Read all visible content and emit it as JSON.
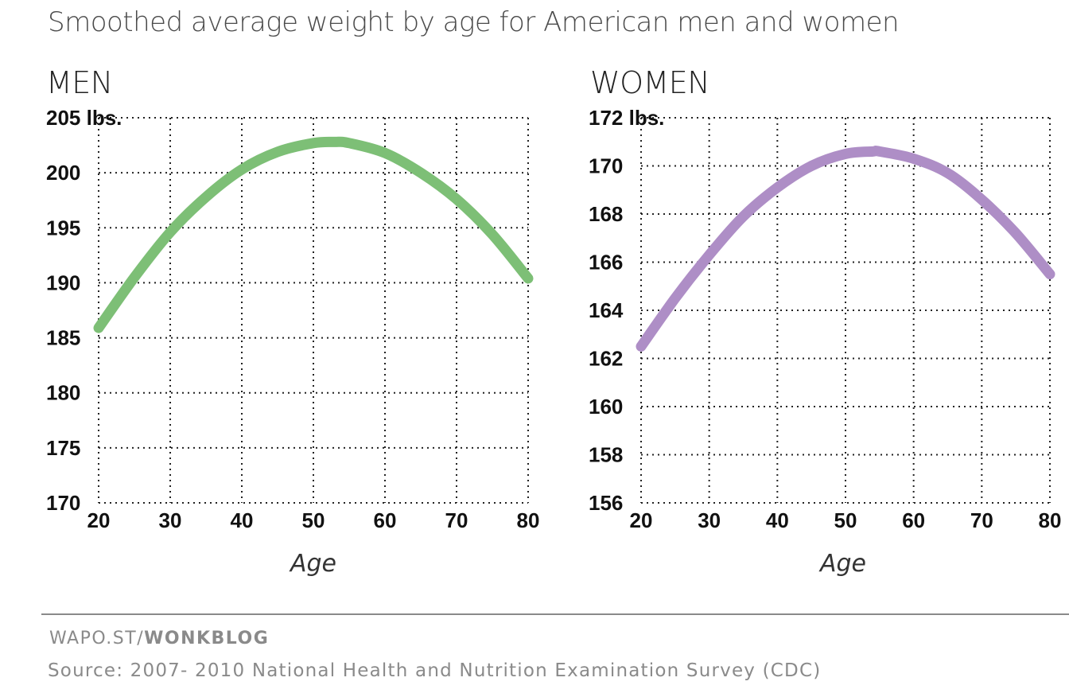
{
  "title": "Smoothed average weight by age for American men and women",
  "footer": {
    "credit_prefix": "WAPO.ST/",
    "credit_bold": "WONKBLOG",
    "source": "Source: 2007- 2010 National Health and Nutrition Examination Survey (CDC)"
  },
  "chart_data": [
    {
      "type": "line",
      "title": "MEN",
      "xlabel": "Age",
      "ylabel": "",
      "xlim": [
        20,
        80
      ],
      "ylim": [
        170,
        205
      ],
      "xticks": [
        20,
        30,
        40,
        50,
        60,
        70,
        80
      ],
      "yticks": [
        "170",
        "175",
        "180",
        "185",
        "190",
        "195",
        "200",
        "205 lbs."
      ],
      "ytick_values": [
        170,
        175,
        180,
        185,
        190,
        195,
        200,
        205
      ],
      "grid": true,
      "series": [
        {
          "name": "Men",
          "color": "#7dbf76",
          "x": [
            20,
            25,
            30,
            35,
            40,
            45,
            50,
            53,
            55,
            60,
            65,
            70,
            75,
            80
          ],
          "y": [
            185.9,
            190.5,
            194.6,
            197.8,
            200.3,
            201.9,
            202.7,
            202.8,
            202.7,
            201.8,
            200.0,
            197.6,
            194.4,
            190.4
          ]
        }
      ]
    },
    {
      "type": "line",
      "title": "WOMEN",
      "xlabel": "Age",
      "ylabel": "",
      "xlim": [
        20,
        80
      ],
      "ylim": [
        156,
        172
      ],
      "xticks": [
        20,
        30,
        40,
        50,
        60,
        70,
        80
      ],
      "yticks": [
        "156",
        "158",
        "160",
        "162",
        "164",
        "166",
        "168",
        "170",
        "172 lbs."
      ],
      "ytick_values": [
        156,
        158,
        160,
        162,
        164,
        166,
        168,
        170,
        172
      ],
      "grid": true,
      "series": [
        {
          "name": "Women",
          "color": "#ae8ec6",
          "x": [
            20,
            25,
            30,
            35,
            40,
            45,
            50,
            54,
            55,
            60,
            65,
            70,
            75,
            80
          ],
          "y": [
            162.5,
            164.5,
            166.3,
            167.9,
            169.1,
            170.0,
            170.5,
            170.6,
            170.6,
            170.3,
            169.7,
            168.6,
            167.2,
            165.5
          ]
        }
      ]
    }
  ]
}
